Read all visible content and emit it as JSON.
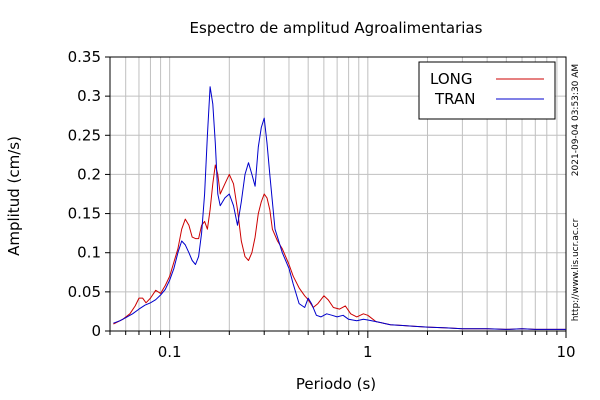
{
  "chart_data": {
    "type": "line",
    "title": "Espectro de amplitud Agroalimentarias",
    "xlabel": "Periodo (s)",
    "ylabel": "Amplitud (cm/s)",
    "x_scale": "log",
    "xlim": [
      0.05,
      10
    ],
    "ylim": [
      0,
      0.35
    ],
    "grid": true,
    "x_tick_labels": [
      {
        "x": 0.1,
        "label": "0.1"
      },
      {
        "x": 1,
        "label": "1"
      },
      {
        "x": 10,
        "label": "10"
      }
    ],
    "y_tick_labels": [
      {
        "y": 0,
        "label": "0"
      },
      {
        "y": 0.05,
        "label": "0.05"
      },
      {
        "y": 0.1,
        "label": "0.1"
      },
      {
        "y": 0.15,
        "label": "0.15"
      },
      {
        "y": 0.2,
        "label": "0.2"
      },
      {
        "y": 0.25,
        "label": "0.25"
      },
      {
        "y": 0.3,
        "label": "0.3"
      },
      {
        "y": 0.35,
        "label": "0.35"
      }
    ],
    "legend_position": "top-right",
    "series": [
      {
        "name": "LONG",
        "color": "#cc0000",
        "points": [
          [
            0.052,
            0.009
          ],
          [
            0.058,
            0.015
          ],
          [
            0.063,
            0.022
          ],
          [
            0.067,
            0.032
          ],
          [
            0.07,
            0.042
          ],
          [
            0.073,
            0.042
          ],
          [
            0.076,
            0.036
          ],
          [
            0.08,
            0.042
          ],
          [
            0.085,
            0.052
          ],
          [
            0.09,
            0.048
          ],
          [
            0.095,
            0.058
          ],
          [
            0.1,
            0.07
          ],
          [
            0.105,
            0.088
          ],
          [
            0.11,
            0.105
          ],
          [
            0.115,
            0.13
          ],
          [
            0.12,
            0.143
          ],
          [
            0.125,
            0.135
          ],
          [
            0.13,
            0.12
          ],
          [
            0.135,
            0.118
          ],
          [
            0.14,
            0.118
          ],
          [
            0.145,
            0.135
          ],
          [
            0.15,
            0.14
          ],
          [
            0.155,
            0.13
          ],
          [
            0.16,
            0.155
          ],
          [
            0.165,
            0.188
          ],
          [
            0.17,
            0.212
          ],
          [
            0.175,
            0.2
          ],
          [
            0.18,
            0.175
          ],
          [
            0.19,
            0.188
          ],
          [
            0.2,
            0.2
          ],
          [
            0.21,
            0.188
          ],
          [
            0.22,
            0.155
          ],
          [
            0.23,
            0.115
          ],
          [
            0.24,
            0.095
          ],
          [
            0.25,
            0.09
          ],
          [
            0.26,
            0.1
          ],
          [
            0.27,
            0.12
          ],
          [
            0.28,
            0.15
          ],
          [
            0.29,
            0.165
          ],
          [
            0.3,
            0.175
          ],
          [
            0.31,
            0.17
          ],
          [
            0.32,
            0.155
          ],
          [
            0.33,
            0.13
          ],
          [
            0.35,
            0.115
          ],
          [
            0.37,
            0.105
          ],
          [
            0.4,
            0.085
          ],
          [
            0.42,
            0.07
          ],
          [
            0.45,
            0.055
          ],
          [
            0.48,
            0.045
          ],
          [
            0.5,
            0.04
          ],
          [
            0.53,
            0.03
          ],
          [
            0.56,
            0.035
          ],
          [
            0.6,
            0.045
          ],
          [
            0.63,
            0.04
          ],
          [
            0.67,
            0.03
          ],
          [
            0.72,
            0.028
          ],
          [
            0.77,
            0.032
          ],
          [
            0.82,
            0.022
          ],
          [
            0.88,
            0.018
          ],
          [
            0.95,
            0.022
          ],
          [
            1.0,
            0.02
          ],
          [
            1.1,
            0.012
          ],
          [
            1.2,
            0.01
          ],
          [
            1.3,
            0.008
          ],
          [
            1.5,
            0.007
          ],
          [
            1.7,
            0.006
          ],
          [
            2.0,
            0.005
          ],
          [
            2.5,
            0.004
          ],
          [
            3.0,
            0.003
          ],
          [
            4.0,
            0.003
          ],
          [
            5.0,
            0.002
          ],
          [
            6.0,
            0.003
          ],
          [
            7.0,
            0.002
          ],
          [
            8.0,
            0.002
          ],
          [
            9.0,
            0.002
          ],
          [
            10.0,
            0.002
          ]
        ]
      },
      {
        "name": "TRAN",
        "color": "#0000cc",
        "points": [
          [
            0.052,
            0.01
          ],
          [
            0.056,
            0.013
          ],
          [
            0.06,
            0.017
          ],
          [
            0.065,
            0.022
          ],
          [
            0.07,
            0.028
          ],
          [
            0.075,
            0.033
          ],
          [
            0.08,
            0.036
          ],
          [
            0.085,
            0.04
          ],
          [
            0.09,
            0.046
          ],
          [
            0.095,
            0.053
          ],
          [
            0.1,
            0.065
          ],
          [
            0.105,
            0.08
          ],
          [
            0.11,
            0.1
          ],
          [
            0.115,
            0.115
          ],
          [
            0.12,
            0.11
          ],
          [
            0.125,
            0.1
          ],
          [
            0.13,
            0.09
          ],
          [
            0.135,
            0.085
          ],
          [
            0.14,
            0.095
          ],
          [
            0.145,
            0.125
          ],
          [
            0.15,
            0.175
          ],
          [
            0.155,
            0.25
          ],
          [
            0.16,
            0.312
          ],
          [
            0.165,
            0.29
          ],
          [
            0.17,
            0.24
          ],
          [
            0.175,
            0.175
          ],
          [
            0.18,
            0.16
          ],
          [
            0.19,
            0.17
          ],
          [
            0.2,
            0.175
          ],
          [
            0.21,
            0.16
          ],
          [
            0.22,
            0.135
          ],
          [
            0.23,
            0.165
          ],
          [
            0.24,
            0.2
          ],
          [
            0.25,
            0.215
          ],
          [
            0.26,
            0.2
          ],
          [
            0.27,
            0.185
          ],
          [
            0.28,
            0.235
          ],
          [
            0.29,
            0.26
          ],
          [
            0.3,
            0.272
          ],
          [
            0.31,
            0.24
          ],
          [
            0.32,
            0.2
          ],
          [
            0.33,
            0.165
          ],
          [
            0.34,
            0.13
          ],
          [
            0.35,
            0.12
          ],
          [
            0.37,
            0.1
          ],
          [
            0.4,
            0.08
          ],
          [
            0.42,
            0.06
          ],
          [
            0.45,
            0.035
          ],
          [
            0.48,
            0.03
          ],
          [
            0.5,
            0.042
          ],
          [
            0.52,
            0.035
          ],
          [
            0.55,
            0.02
          ],
          [
            0.58,
            0.018
          ],
          [
            0.62,
            0.022
          ],
          [
            0.66,
            0.02
          ],
          [
            0.7,
            0.018
          ],
          [
            0.75,
            0.02
          ],
          [
            0.8,
            0.015
          ],
          [
            0.88,
            0.013
          ],
          [
            0.95,
            0.015
          ],
          [
            1.0,
            0.014
          ],
          [
            1.1,
            0.012
          ],
          [
            1.2,
            0.01
          ],
          [
            1.3,
            0.008
          ],
          [
            1.5,
            0.007
          ],
          [
            1.7,
            0.006
          ],
          [
            2.0,
            0.005
          ],
          [
            2.5,
            0.004
          ],
          [
            3.0,
            0.003
          ],
          [
            4.0,
            0.003
          ],
          [
            5.0,
            0.002
          ],
          [
            6.0,
            0.003
          ],
          [
            7.0,
            0.002
          ],
          [
            8.0,
            0.002
          ],
          [
            9.0,
            0.002
          ],
          [
            10.0,
            0.002
          ]
        ]
      }
    ]
  },
  "side_labels": {
    "timestamp": "2021-09-04 03:53:30 AM",
    "url": "http://www.lis.ucr.ac.cr"
  }
}
